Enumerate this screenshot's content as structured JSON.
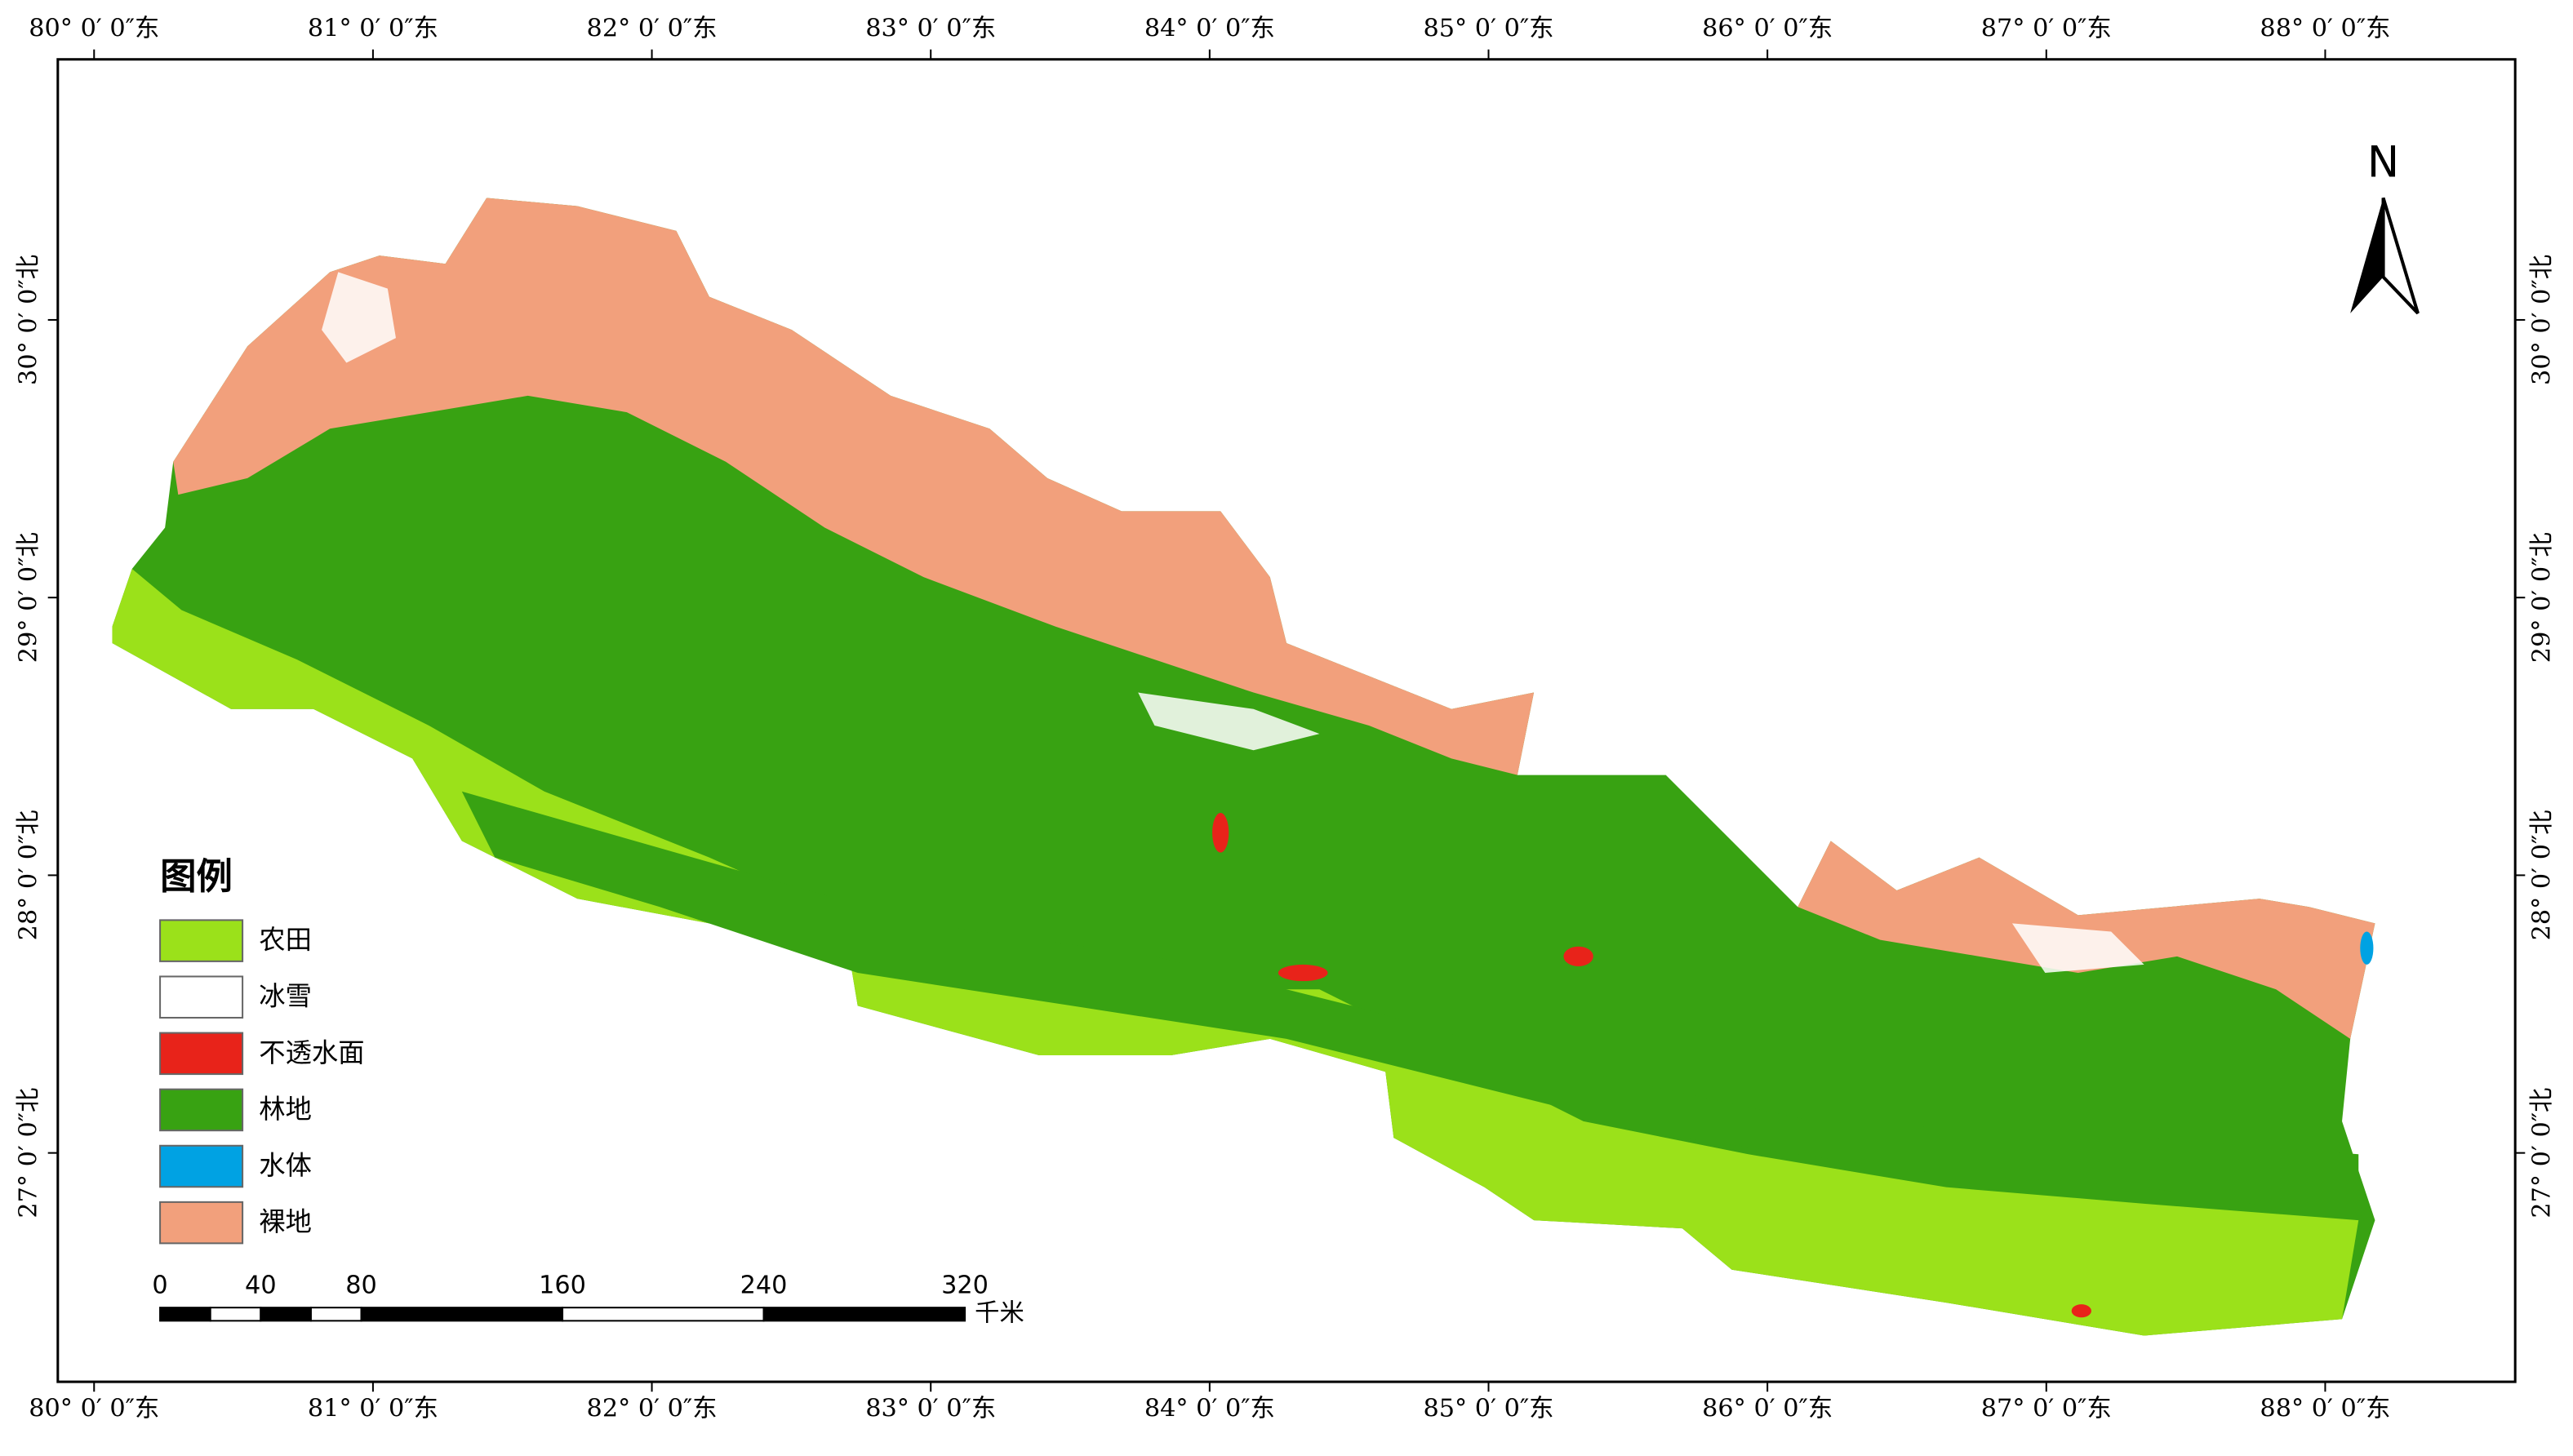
{
  "graticule": {
    "longitudes": [
      {
        "value": 80,
        "label": "80° 0′ 0″东"
      },
      {
        "value": 81,
        "label": "81° 0′ 0″东"
      },
      {
        "value": 82,
        "label": "82° 0′ 0″东"
      },
      {
        "value": 83,
        "label": "83° 0′ 0″东"
      },
      {
        "value": 84,
        "label": "84° 0′ 0″东"
      },
      {
        "value": 85,
        "label": "85° 0′ 0″东"
      },
      {
        "value": 86,
        "label": "86° 0′ 0″东"
      },
      {
        "value": 87,
        "label": "87° 0′ 0″东"
      },
      {
        "value": 88,
        "label": "88° 0′ 0″东"
      }
    ],
    "latitudes": [
      {
        "value": 30,
        "label": "30° 0′ 0″北"
      },
      {
        "value": 29,
        "label": "29° 0′ 0″北"
      },
      {
        "value": 28,
        "label": "28° 0′ 0″北"
      },
      {
        "value": 27,
        "label": "27° 0′ 0″北"
      }
    ]
  },
  "north_arrow": {
    "label": "N"
  },
  "legend": {
    "title": "图例",
    "items": [
      {
        "name": "农田",
        "color": "#9be11a"
      },
      {
        "name": "冰雪",
        "color": "#ffffff"
      },
      {
        "name": "不透水面",
        "color": "#e8231a"
      },
      {
        "name": "林地",
        "color": "#38a212"
      },
      {
        "name": "水体",
        "color": "#00a2e3"
      },
      {
        "name": "裸地",
        "color": "#f2a07c"
      }
    ]
  },
  "scale_bar": {
    "ticks": [
      0,
      40,
      80,
      160,
      240,
      320
    ],
    "unit": "千米"
  }
}
